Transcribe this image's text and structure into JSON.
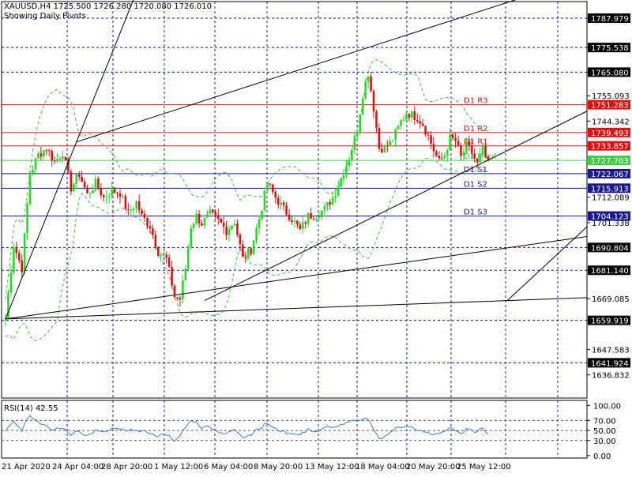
{
  "header": {
    "symbol_line": "XAUUSD,H4  1725.500 1726.280 1720.080 1726.010",
    "subtitle": "Showing Daily Pivots"
  },
  "colors": {
    "bull": "#22dd22",
    "bear": "#dd1111",
    "grid": "#1a1a8c",
    "pivot_resistance": "#dd1111",
    "pivot_main": "#44cc44",
    "pivot_support": "#1a1a8c",
    "bollinger": "#44bb44",
    "rsi": "#3b7dd8",
    "trendline": "#000000"
  },
  "chart_data": {
    "type": "candlestick",
    "symbol": "XAUUSD",
    "timeframe": "H4",
    "ylim": [
      1627,
      1795
    ],
    "y_ticks": [
      "1787.979",
      "1775.538",
      "1765.080",
      "1755.093",
      "1744.342",
      "1733.857",
      "1722.067",
      "1712.089",
      "1701.338",
      "1690.804",
      "1681.140",
      "1669.085",
      "1659.919",
      "1647.583",
      "1636.832"
    ],
    "x_ticks": [
      "21 Apr 2020",
      "24 Apr 04:00",
      "28 Apr 20:00",
      "1 May 12:00",
      "6 May 04:00",
      "8 May 20:00",
      "13 May 12:00",
      "18 May 04:00",
      "20 May 20:00",
      "25 May 12:00"
    ],
    "boxed_levels": [
      {
        "label": "1787.979",
        "value": 1787.979,
        "style": "black"
      },
      {
        "label": "1775.538",
        "value": 1775.538,
        "style": "black"
      },
      {
        "label": "1765.080",
        "value": 1765.08,
        "style": "black"
      },
      {
        "label": "1751.283",
        "value": 1751.283,
        "style": "red"
      },
      {
        "label": "1739.493",
        "value": 1739.493,
        "style": "red"
      },
      {
        "label": "1733.857",
        "value": 1733.857,
        "style": "red"
      },
      {
        "label": "1727.703",
        "value": 1727.703,
        "style": "green"
      },
      {
        "label": "1722.067",
        "value": 1722.067,
        "style": "blue"
      },
      {
        "label": "1715.913",
        "value": 1715.913,
        "style": "blue"
      },
      {
        "label": "1704.123",
        "value": 1704.123,
        "style": "blue"
      },
      {
        "label": "1690.804",
        "value": 1690.804,
        "style": "black"
      },
      {
        "label": "1681.140",
        "value": 1681.14,
        "style": "black"
      },
      {
        "label": "1659.919",
        "value": 1659.919,
        "style": "black"
      },
      {
        "label": "1641.924",
        "value": 1641.924,
        "style": "black"
      }
    ],
    "pivots": [
      {
        "label": "D1  R3",
        "value": 1751.283,
        "kind": "resistance"
      },
      {
        "label": "D1  R2",
        "value": 1739.493,
        "kind": "resistance"
      },
      {
        "label": "D1  R1",
        "value": 1733.857,
        "kind": "resistance"
      },
      {
        "label": "D1  Pivot",
        "value": 1727.703,
        "kind": "main"
      },
      {
        "label": "D1  S1",
        "value": 1722.067,
        "kind": "support"
      },
      {
        "label": "D1  S2",
        "value": 1715.913,
        "kind": "support"
      },
      {
        "label": "D1  S3",
        "value": 1704.123,
        "kind": "support"
      }
    ],
    "trendlines": [
      {
        "from": [
          0,
          1660.5
        ],
        "to": [
          184,
          1668.3
        ]
      },
      {
        "from": [
          184,
          1668.3
        ],
        "to": [
          205,
          1690.8
        ]
      },
      {
        "from": [
          0,
          1660.5
        ],
        "to": [
          26,
          1735.5
        ]
      },
      {
        "from": [
          26,
          1735.5
        ],
        "to": [
          185,
          1795
        ]
      },
      {
        "from": [
          73,
          1668.3
        ],
        "to": [
          200,
          1741
        ]
      },
      {
        "from": [
          0,
          1660.5
        ],
        "to": [
          185,
          1690.8
        ]
      }
    ],
    "ohlc_anchors": [
      [
        0,
        1661
      ],
      [
        3,
        1692
      ],
      [
        6,
        1682
      ],
      [
        9,
        1722
      ],
      [
        12,
        1730
      ],
      [
        15,
        1733
      ],
      [
        18,
        1727
      ],
      [
        21,
        1731
      ],
      [
        24,
        1716
      ],
      [
        27,
        1722
      ],
      [
        30,
        1713
      ],
      [
        33,
        1718
      ],
      [
        36,
        1712
      ],
      [
        39,
        1715
      ],
      [
        42,
        1714
      ],
      [
        45,
        1705
      ],
      [
        48,
        1710
      ],
      [
        50,
        1704
      ],
      [
        53,
        1700
      ],
      [
        56,
        1689
      ],
      [
        59,
        1686
      ],
      [
        62,
        1670
      ],
      [
        64,
        1669
      ],
      [
        66,
        1682
      ],
      [
        68,
        1700
      ],
      [
        70,
        1704
      ],
      [
        72,
        1701
      ],
      [
        75,
        1705
      ],
      [
        78,
        1702
      ],
      [
        81,
        1698
      ],
      [
        84,
        1702
      ],
      [
        87,
        1686
      ],
      [
        90,
        1690
      ],
      [
        93,
        1703
      ],
      [
        96,
        1718
      ],
      [
        99,
        1712
      ],
      [
        102,
        1707
      ],
      [
        105,
        1703
      ],
      [
        108,
        1698
      ],
      [
        111,
        1704
      ],
      [
        114,
        1705
      ],
      [
        117,
        1707
      ],
      [
        120,
        1712
      ],
      [
        123,
        1720
      ],
      [
        126,
        1729
      ],
      [
        129,
        1741
      ],
      [
        131,
        1756
      ],
      [
        133,
        1765
      ],
      [
        135,
        1750
      ],
      [
        137,
        1733
      ],
      [
        139,
        1733
      ],
      [
        141,
        1735
      ],
      [
        143,
        1739
      ],
      [
        145,
        1744
      ],
      [
        147,
        1748
      ],
      [
        149,
        1747
      ],
      [
        151,
        1746
      ],
      [
        153,
        1743
      ],
      [
        155,
        1738
      ],
      [
        157,
        1732
      ],
      [
        159,
        1727
      ],
      [
        161,
        1730
      ],
      [
        163,
        1737
      ],
      [
        165,
        1736
      ],
      [
        167,
        1729
      ],
      [
        169,
        1734
      ],
      [
        171,
        1731
      ],
      [
        173,
        1726
      ],
      [
        175,
        1732
      ],
      [
        177,
        1726
      ]
    ],
    "candle_count": 178,
    "rsi": {
      "label": "RSI(14) 42.55",
      "period": 14,
      "value": 42.55,
      "ylim": [
        -5,
        110
      ],
      "y_ticks": [
        "100.00",
        "70.00",
        "50.00",
        "30.00",
        "0.00"
      ]
    }
  }
}
